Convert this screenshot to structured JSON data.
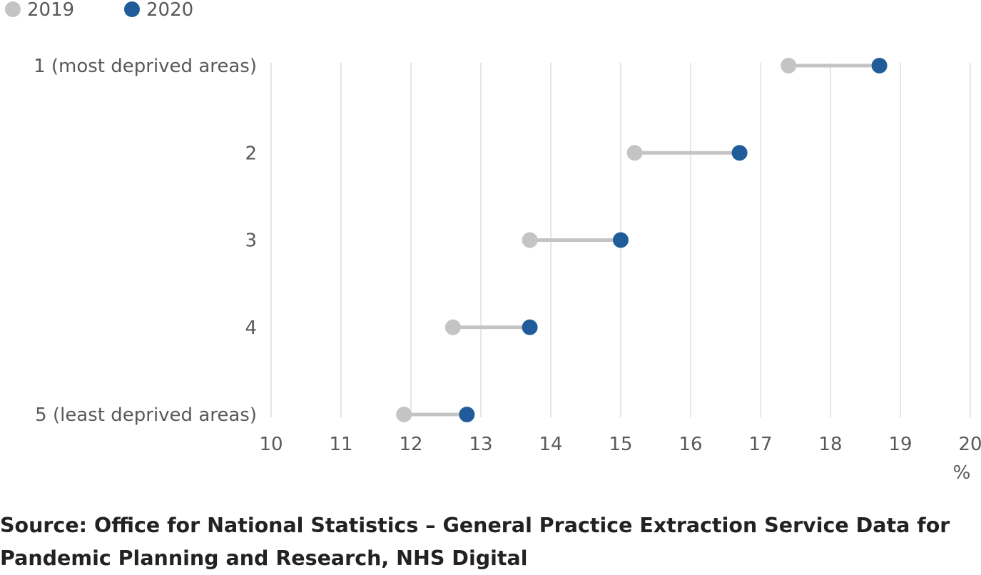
{
  "chart_data": {
    "type": "dumbbell",
    "categories": [
      "1 (most deprived areas)",
      "2",
      "3",
      "4",
      "5 (least deprived areas)"
    ],
    "series": [
      {
        "name": "2019",
        "color": "#c4c4c4",
        "values": [
          17.4,
          15.2,
          13.7,
          12.6,
          11.9
        ]
      },
      {
        "name": "2020",
        "color": "#1f5c99",
        "values": [
          18.7,
          16.7,
          15.0,
          13.7,
          12.8
        ]
      }
    ],
    "xlim": [
      10,
      20
    ],
    "xticks": [
      10,
      11,
      12,
      13,
      14,
      15,
      16,
      17,
      18,
      19,
      20
    ],
    "xlabel": "%",
    "grid": "vertical",
    "legend_position": "top-left",
    "connector_color": "#c4c4c4",
    "grid_color": "#dddddd"
  },
  "source": "Source: Office for National Statistics – General Practice Extraction Service Data for Pandemic Planning and Research, NHS Digital"
}
